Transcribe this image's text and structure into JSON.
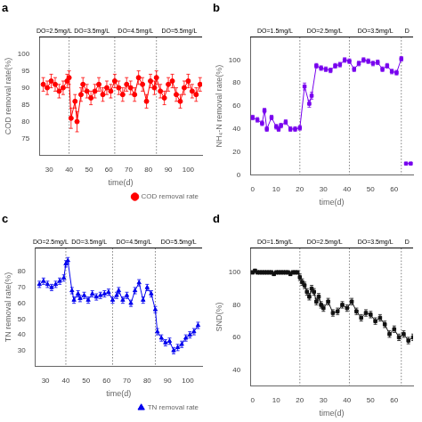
{
  "chart_data": [
    {
      "type": "line",
      "title": "a",
      "xlabel": "time(d)",
      "ylabel": "COD removal rate(%)",
      "xlim": [
        25,
        107
      ],
      "ylim": [
        70,
        105
      ],
      "xticks": [
        30,
        40,
        50,
        60,
        70,
        80,
        90,
        100
      ],
      "yticks": [
        75,
        80,
        85,
        90,
        95,
        100
      ],
      "grid": false,
      "legend": "lower right",
      "vlines": [
        40,
        63,
        84
      ],
      "annotations": [
        "DO=2.5mg/L",
        "DO=3.5mg/L",
        "DO=4.5mg/L",
        "DO=5.5mg/L"
      ],
      "series": [
        {
          "name": "COD removal rate",
          "color": "#ff0000",
          "marker": "circle",
          "line_style": "solid",
          "x": [
            27,
            29,
            31,
            33,
            35,
            37,
            39,
            40,
            41,
            43,
            44,
            46,
            47,
            49,
            51,
            53,
            55,
            57,
            59,
            61,
            63,
            65,
            67,
            69,
            71,
            73,
            75,
            77,
            79,
            81,
            83,
            84,
            86,
            88,
            90,
            92,
            94,
            96,
            98,
            100,
            102,
            104,
            106
          ],
          "values": [
            91,
            90,
            92,
            91,
            89,
            90,
            92,
            93,
            81,
            86,
            80,
            88,
            91,
            89,
            87,
            89,
            91,
            88,
            90,
            89,
            92,
            90,
            88,
            91,
            90,
            88,
            93,
            91,
            86,
            92,
            90,
            93,
            89,
            87,
            91,
            92,
            88,
            86,
            90,
            92,
            89,
            88,
            91
          ],
          "yerr": [
            2,
            2,
            2,
            2,
            2,
            2,
            2,
            2,
            3,
            2,
            3,
            2,
            2,
            2,
            2,
            2,
            2,
            2,
            2,
            2,
            2,
            2,
            2,
            2,
            2,
            2,
            2,
            2,
            2,
            2,
            2,
            2,
            2,
            2,
            2,
            2,
            2,
            2,
            2,
            2,
            2,
            2,
            2
          ]
        }
      ]
    },
    {
      "type": "line",
      "title": "b",
      "xlabel": "time(d)",
      "ylabel": "NH₄-N removal rate(%)",
      "xlim": [
        -1,
        68
      ],
      "ylim": [
        0,
        120
      ],
      "xticks": [
        0,
        10,
        20,
        30,
        40,
        50,
        60
      ],
      "yticks": [
        0,
        20,
        40,
        60,
        80,
        100
      ],
      "grid": false,
      "vlines": [
        20,
        41,
        63
      ],
      "annotations": [
        "DO=1.5mg/L",
        "DO=2.5mg/L",
        "DO=3.5mg/L",
        "D"
      ],
      "series": [
        {
          "color": "#7700ee",
          "marker": "square",
          "line_style": "solid",
          "x": [
            0,
            2,
            4,
            5,
            6,
            8,
            10,
            11,
            12,
            14,
            16,
            18,
            20,
            22,
            24,
            25,
            27,
            29,
            31,
            33,
            35,
            37,
            39,
            41,
            43,
            45,
            47,
            49,
            51,
            53,
            55,
            57,
            59,
            61,
            63
          ],
          "values": [
            50,
            48,
            45,
            56,
            40,
            50,
            42,
            40,
            43,
            46,
            40,
            40,
            41,
            77,
            62,
            69,
            95,
            93,
            92,
            91,
            95,
            96,
            100,
            99,
            92,
            97,
            100,
            99,
            97,
            98,
            92,
            95,
            90,
            89,
            101
          ],
          "yerr": [
            2,
            2,
            2,
            2,
            2,
            2,
            2,
            2,
            2,
            2,
            2,
            2,
            2,
            3,
            3,
            3,
            2,
            2,
            2,
            2,
            2,
            2,
            2,
            2,
            2,
            2,
            2,
            2,
            2,
            2,
            2,
            2,
            2,
            2,
            2
          ]
        },
        {
          "color": "#7700ee",
          "marker": "square",
          "line_style": "solid",
          "x": [
            65,
            67
          ],
          "values": [
            10,
            10
          ]
        }
      ]
    },
    {
      "type": "line",
      "title": "c",
      "xlabel": "time(d)",
      "ylabel": "TN removal rate(%)",
      "xlim": [
        25,
        107
      ],
      "ylim": [
        20,
        95
      ],
      "xticks": [
        30,
        40,
        50,
        60,
        70,
        80,
        90,
        100
      ],
      "yticks": [
        30,
        40,
        50,
        60,
        70,
        80
      ],
      "grid": false,
      "legend": "lower right",
      "vlines": [
        40,
        63,
        84
      ],
      "annotations": [
        "DO=2.5mg/L",
        "DO=3.5mg/L",
        "DO=4.5mg/L",
        "DO=5.5mg/L"
      ],
      "series": [
        {
          "name": "TN removal rate",
          "color": "#0000ee",
          "marker": "triangle",
          "line_style": "solid",
          "x": [
            27,
            29,
            31,
            33,
            35,
            37,
            39,
            40,
            41,
            43,
            44,
            46,
            47,
            49,
            51,
            53,
            55,
            57,
            59,
            61,
            63,
            65,
            66,
            68,
            70,
            72,
            74,
            76,
            78,
            80,
            82,
            84,
            85,
            87,
            89,
            91,
            93,
            95,
            97,
            99,
            101,
            103,
            105
          ],
          "values": [
            72,
            74,
            72,
            70,
            72,
            74,
            76,
            85,
            87,
            68,
            62,
            66,
            63,
            65,
            62,
            66,
            64,
            65,
            66,
            67,
            62,
            65,
            68,
            62,
            65,
            60,
            68,
            73,
            62,
            70,
            66,
            56,
            42,
            38,
            35,
            36,
            30,
            32,
            34,
            38,
            40,
            42,
            46
          ],
          "yerr": [
            2,
            2,
            2,
            2,
            2,
            2,
            2,
            2,
            2,
            2,
            2,
            2,
            2,
            2,
            2,
            2,
            2,
            2,
            2,
            2,
            2,
            2,
            2,
            2,
            2,
            2,
            2,
            2,
            2,
            2,
            2,
            2,
            2,
            2,
            2,
            2,
            2,
            2,
            2,
            2,
            2,
            2,
            2
          ]
        }
      ]
    },
    {
      "type": "line",
      "title": "d",
      "xlabel": "time(d)",
      "ylabel": "SND(%)",
      "xlim": [
        -1,
        68
      ],
      "ylim": [
        30,
        115
      ],
      "xticks": [
        0,
        10,
        20,
        30,
        40,
        50,
        60
      ],
      "yticks": [
        40,
        60,
        80,
        100
      ],
      "grid": false,
      "vlines": [
        20,
        41,
        63
      ],
      "annotations": [
        "DO=1.5mg/L",
        "DO=2.5mg/L",
        "DO=3.5mg/L",
        "D"
      ],
      "series": [
        {
          "color": "#111111",
          "marker": "square",
          "line_style": "solid",
          "x": [
            0,
            1,
            2,
            3,
            4,
            5,
            6,
            7,
            8,
            9,
            10,
            11,
            12,
            13,
            14,
            15,
            16,
            17,
            18,
            19,
            20,
            21,
            22,
            23,
            24,
            25,
            26,
            27,
            28,
            29,
            30,
            32,
            34,
            36,
            38,
            40,
            42,
            44,
            46,
            48,
            50,
            52,
            54,
            56,
            58,
            60,
            62,
            64,
            66,
            68
          ],
          "values": [
            100,
            101,
            100,
            100,
            100,
            100,
            100,
            100,
            100,
            99,
            100,
            100,
            100,
            100,
            100,
            100,
            99,
            100,
            100,
            100,
            97,
            94,
            92,
            88,
            85,
            90,
            88,
            82,
            85,
            80,
            78,
            82,
            75,
            76,
            80,
            78,
            82,
            76,
            72,
            75,
            74,
            70,
            72,
            68,
            62,
            65,
            60,
            62,
            58,
            60
          ],
          "yerr": [
            1,
            1,
            1,
            1,
            1,
            1,
            1,
            1,
            1,
            1,
            1,
            1,
            1,
            1,
            1,
            1,
            1,
            1,
            1,
            1,
            2,
            2,
            2,
            2,
            2,
            2,
            2,
            2,
            2,
            2,
            2,
            2,
            2,
            2,
            2,
            2,
            2,
            2,
            2,
            2,
            2,
            2,
            2,
            2,
            2,
            2,
            2,
            2,
            2,
            2
          ]
        }
      ]
    }
  ]
}
